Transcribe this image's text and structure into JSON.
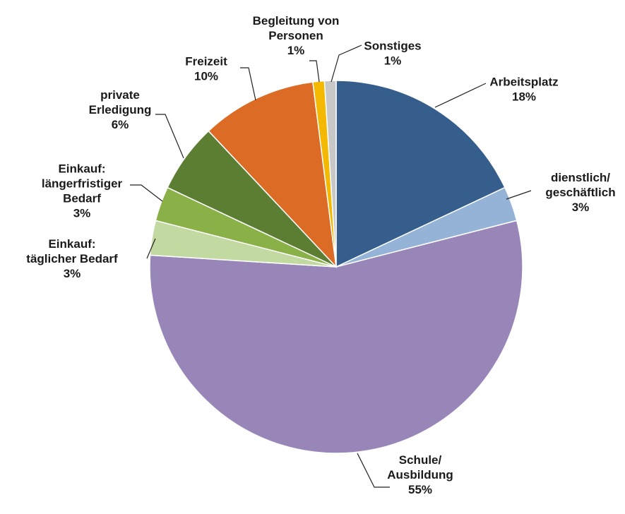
{
  "chart_data": {
    "type": "pie",
    "start_angle_deg": 0,
    "direction": "clockwise",
    "slices": [
      {
        "label_lines": [
          "Arbeitsplatz"
        ],
        "pct_text": "18%",
        "value": 18,
        "color": "#355e8d"
      },
      {
        "label_lines": [
          "dienstlich/",
          "geschäftlich"
        ],
        "pct_text": "3%",
        "value": 3,
        "color": "#94b3d6"
      },
      {
        "label_lines": [
          "Schule/",
          "Ausbildung"
        ],
        "pct_text": "55%",
        "value": 55,
        "color": "#9886b8"
      },
      {
        "label_lines": [
          "Einkauf:",
          "täglicher Bedarf"
        ],
        "pct_text": "3%",
        "value": 3,
        "color": "#c3d9a2"
      },
      {
        "label_lines": [
          "Einkauf:",
          "längerfristiger",
          "Bedarf"
        ],
        "pct_text": "3%",
        "value": 3,
        "color": "#8ab048"
      },
      {
        "label_lines": [
          "private",
          "Erledigung"
        ],
        "pct_text": "6%",
        "value": 6,
        "color": "#5b7e33"
      },
      {
        "label_lines": [
          "Freizeit"
        ],
        "pct_text": "10%",
        "value": 10,
        "color": "#dc6b25"
      },
      {
        "label_lines": [
          "Begleitung von",
          "Personen"
        ],
        "pct_text": "1%",
        "value": 1,
        "color": "#f5b800"
      },
      {
        "label_lines": [
          "Sonstiges"
        ],
        "pct_text": "1%",
        "value": 1,
        "color": "#c8c8c8"
      }
    ]
  }
}
